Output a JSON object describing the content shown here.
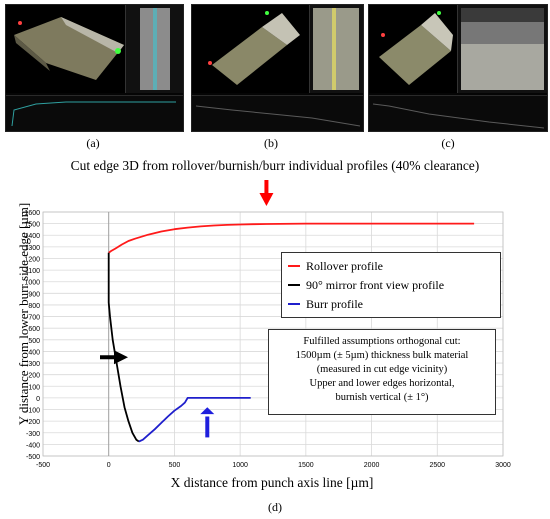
{
  "panels": [
    {
      "label": "(a)"
    },
    {
      "label": "(b)"
    },
    {
      "label": "(c)"
    }
  ],
  "caption": "Cut edge 3D from rollover/burnish/burr individual profiles (40% clearance)",
  "figure_label": "(d)",
  "colors": {
    "rollover": "#ff1a1a",
    "mirror": "#000000",
    "burr": "#1f1fcc",
    "arrow_red": "#ff0000",
    "arrow_black": "#000000",
    "arrow_blue": "#1f1fdd"
  },
  "annotation": {
    "lines": [
      "Fulfilled assumptions orthogonal cut:",
      "1500µm (± 5µm) thickness bulk material",
      "(measured in cut edge vicinity)",
      "Upper and lower edges horizontal,",
      "burnish vertical (± 1°)"
    ]
  },
  "chart_data": {
    "type": "line",
    "xlabel": "X distance from punch axis line [µm]",
    "ylabel": "Y distance from lower burr side edge [µm]",
    "xlim": [
      -500,
      3000
    ],
    "ylim": [
      -500,
      1600
    ],
    "xticks": [
      "-500",
      "0",
      "500",
      "1000",
      "1500",
      "2000",
      "2500",
      "3000"
    ],
    "yticks": [
      "-500",
      "-400",
      "-300",
      "-200",
      "-100",
      "0",
      "100",
      "200",
      "300",
      "400",
      "500",
      "600",
      "700",
      "800",
      "900",
      "1000",
      "1100",
      "1200",
      "1300",
      "1400",
      "1500",
      "1600"
    ],
    "grid": true,
    "legend_position": "upper-right",
    "series": [
      {
        "name": "Rollover profile",
        "color": "#ff1a1a",
        "x": [
          0,
          20,
          50,
          100,
          150,
          200,
          300,
          400,
          500,
          600,
          700,
          800,
          900,
          1000,
          1100,
          1200,
          1300,
          1500,
          2000,
          2500,
          2780
        ],
        "y": [
          1250,
          1265,
          1285,
          1320,
          1350,
          1370,
          1405,
          1432,
          1452,
          1466,
          1476,
          1484,
          1489,
          1492,
          1495,
          1497,
          1498,
          1500,
          1500,
          1500,
          1500
        ]
      },
      {
        "name": "90° mirror front view profile",
        "color": "#000000",
        "x": [
          0,
          0,
          0,
          0,
          10,
          30,
          60,
          90,
          120,
          150,
          180,
          210,
          230
        ],
        "y": [
          1250,
          1000,
          900,
          820,
          700,
          500,
          300,
          100,
          -80,
          -200,
          -300,
          -360,
          -375
        ]
      },
      {
        "name": "Burr profile",
        "color": "#1f1fcc",
        "x": [
          230,
          260,
          300,
          350,
          400,
          450,
          500,
          550,
          580,
          590,
          600,
          620,
          700,
          800,
          900,
          1000,
          1080
        ],
        "y": [
          -375,
          -360,
          -320,
          -270,
          -215,
          -160,
          -110,
          -70,
          -40,
          -20,
          0,
          0,
          0,
          0,
          0,
          0,
          0
        ]
      }
    ]
  }
}
